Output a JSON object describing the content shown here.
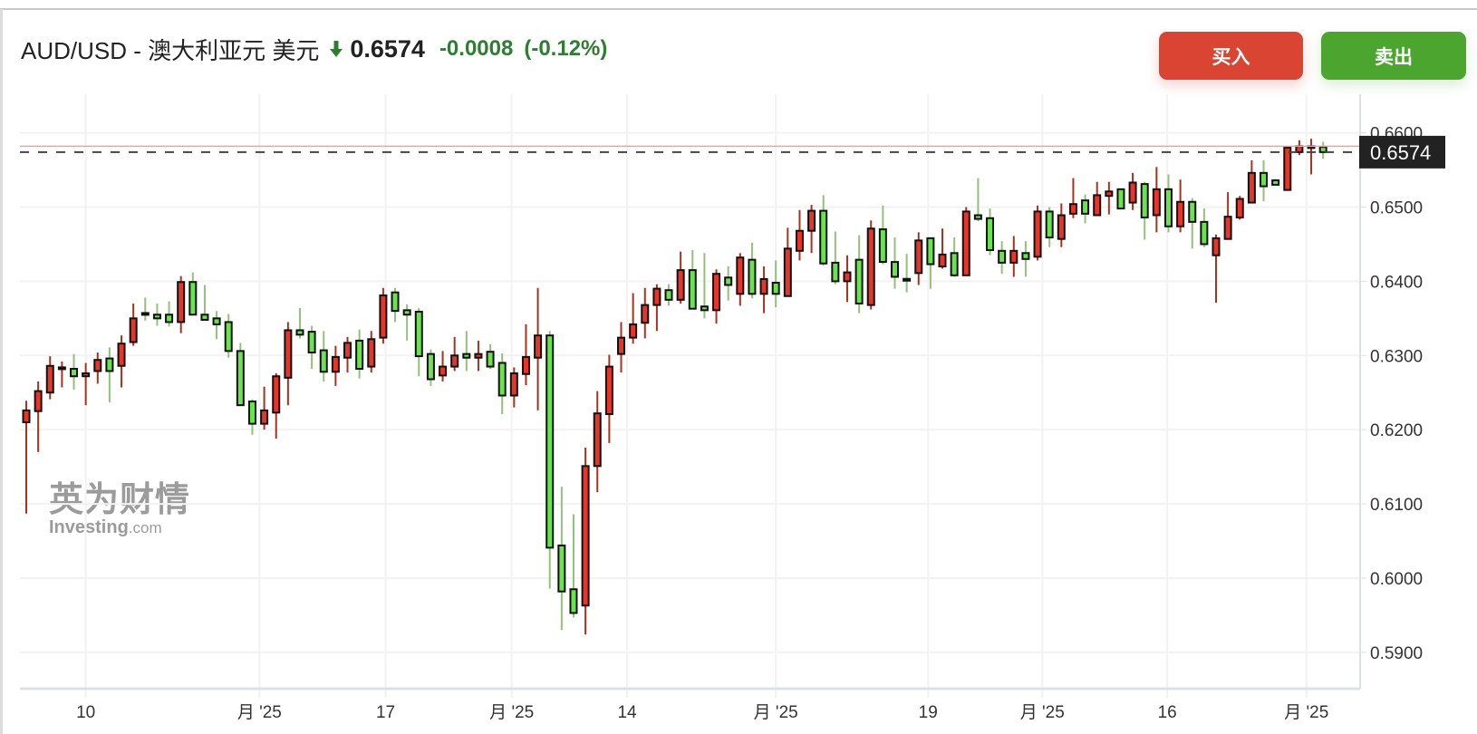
{
  "header": {
    "title": "AUD/USD - 澳大利亚元 美元",
    "direction_icon": "arrow-down-icon",
    "last_price": "0.6574",
    "change": "-0.0008",
    "change_pct": "(-0.12%)",
    "change_color": "#2f7d32"
  },
  "buttons": {
    "buy": "买入",
    "sell": "卖出",
    "buy_color": "#d94433",
    "sell_color": "#4ca52f"
  },
  "watermark": {
    "cn": "英为财情",
    "en": "Investing",
    "suffix": ".com"
  },
  "chart_data": {
    "type": "candlestick",
    "up_color": "#e8352a",
    "down_color": "#6be24f",
    "ylim": [
      0.5851,
      0.6652
    ],
    "grid": true,
    "y_ticks": [
      "0.6600",
      "0.6500",
      "0.6400",
      "0.6300",
      "0.6200",
      "0.6100",
      "0.6000",
      "0.5900"
    ],
    "x_ticks": [
      {
        "label": "10",
        "at": 5
      },
      {
        "label": "月 '25",
        "at": 19.6
      },
      {
        "label": "17",
        "at": 30.2
      },
      {
        "label": "月 '25",
        "at": 40.8
      },
      {
        "label": "14",
        "at": 50.5
      },
      {
        "label": "月 '25",
        "at": 63
      },
      {
        "label": "19",
        "at": 75.8
      },
      {
        "label": "月 '25",
        "at": 85.4
      },
      {
        "label": "16",
        "at": 95.9
      },
      {
        "label": "月 '25",
        "at": 107.6
      }
    ],
    "last_price_label": "0.6574",
    "last_price": 0.6574,
    "high_line": 0.6582,
    "ohlc_fields": [
      "open",
      "high",
      "low",
      "close"
    ],
    "candles": [
      [
        0.621,
        0.6239,
        0.6087,
        0.6226
      ],
      [
        0.6225,
        0.6265,
        0.617,
        0.6252
      ],
      [
        0.625,
        0.6299,
        0.6241,
        0.6286
      ],
      [
        0.6283,
        0.6292,
        0.6257,
        0.6284
      ],
      [
        0.6282,
        0.6302,
        0.6254,
        0.6272
      ],
      [
        0.6272,
        0.629,
        0.6233,
        0.6276
      ],
      [
        0.6279,
        0.6304,
        0.6262,
        0.6294
      ],
      [
        0.6296,
        0.6311,
        0.6237,
        0.6279
      ],
      [
        0.6286,
        0.6327,
        0.6257,
        0.6316
      ],
      [
        0.6318,
        0.637,
        0.6313,
        0.635
      ],
      [
        0.6356,
        0.6378,
        0.6347,
        0.6356
      ],
      [
        0.6355,
        0.637,
        0.634,
        0.635
      ],
      [
        0.6355,
        0.6373,
        0.6339,
        0.6345
      ],
      [
        0.6345,
        0.6407,
        0.633,
        0.6399
      ],
      [
        0.6399,
        0.6412,
        0.6355,
        0.6355
      ],
      [
        0.6355,
        0.6395,
        0.6348,
        0.6348
      ],
      [
        0.635,
        0.636,
        0.6322,
        0.6342
      ],
      [
        0.6345,
        0.6356,
        0.6297,
        0.6306
      ],
      [
        0.6306,
        0.6317,
        0.6233,
        0.6233
      ],
      [
        0.6238,
        0.6241,
        0.6193,
        0.6208
      ],
      [
        0.6208,
        0.6258,
        0.62,
        0.6226
      ],
      [
        0.6223,
        0.6276,
        0.6188,
        0.6272
      ],
      [
        0.627,
        0.6345,
        0.6233,
        0.6334
      ],
      [
        0.6334,
        0.6364,
        0.6323,
        0.6328
      ],
      [
        0.6332,
        0.634,
        0.6282,
        0.6304
      ],
      [
        0.6307,
        0.6333,
        0.6265,
        0.6278
      ],
      [
        0.6278,
        0.6313,
        0.6259,
        0.6298
      ],
      [
        0.6297,
        0.6325,
        0.6277,
        0.6317
      ],
      [
        0.632,
        0.6335,
        0.6269,
        0.6282
      ],
      [
        0.6285,
        0.6333,
        0.6277,
        0.6322
      ],
      [
        0.6324,
        0.6391,
        0.6316,
        0.6381
      ],
      [
        0.6385,
        0.6391,
        0.6345,
        0.636
      ],
      [
        0.6361,
        0.6369,
        0.632,
        0.6355
      ],
      [
        0.6359,
        0.6364,
        0.6272,
        0.6299
      ],
      [
        0.6302,
        0.6308,
        0.6259,
        0.6268
      ],
      [
        0.6273,
        0.6306,
        0.6265,
        0.6285
      ],
      [
        0.6285,
        0.6325,
        0.6279,
        0.63
      ],
      [
        0.6302,
        0.6333,
        0.6279,
        0.6297
      ],
      [
        0.6297,
        0.632,
        0.6279,
        0.6302
      ],
      [
        0.6305,
        0.6315,
        0.6282,
        0.6285
      ],
      [
        0.629,
        0.6303,
        0.6221,
        0.6246
      ],
      [
        0.6246,
        0.6284,
        0.623,
        0.6276
      ],
      [
        0.6275,
        0.6342,
        0.626,
        0.6298
      ],
      [
        0.6297,
        0.6391,
        0.6226,
        0.6327
      ],
      [
        0.6327,
        0.6333,
        0.5986,
        0.6041
      ],
      [
        0.6044,
        0.6123,
        0.593,
        0.5982
      ],
      [
        0.5985,
        0.6086,
        0.5947,
        0.5953
      ],
      [
        0.5963,
        0.6176,
        0.5924,
        0.6151
      ],
      [
        0.6151,
        0.6252,
        0.6116,
        0.6222
      ],
      [
        0.6221,
        0.6301,
        0.6182,
        0.6285
      ],
      [
        0.6302,
        0.6345,
        0.6277,
        0.6324
      ],
      [
        0.6324,
        0.6384,
        0.6316,
        0.6342
      ],
      [
        0.6344,
        0.6391,
        0.6323,
        0.6368
      ],
      [
        0.6368,
        0.6396,
        0.6333,
        0.639
      ],
      [
        0.6388,
        0.6396,
        0.6367,
        0.6375
      ],
      [
        0.6375,
        0.644,
        0.637,
        0.6415
      ],
      [
        0.6415,
        0.6442,
        0.6363,
        0.6363
      ],
      [
        0.6366,
        0.6438,
        0.635,
        0.6361
      ],
      [
        0.6361,
        0.6416,
        0.6343,
        0.641
      ],
      [
        0.6405,
        0.642,
        0.6374,
        0.6395
      ],
      [
        0.6383,
        0.6438,
        0.6367,
        0.6432
      ],
      [
        0.6429,
        0.6452,
        0.6377,
        0.6383
      ],
      [
        0.6383,
        0.642,
        0.6357,
        0.6403
      ],
      [
        0.6398,
        0.6428,
        0.6365,
        0.6383
      ],
      [
        0.638,
        0.6472,
        0.638,
        0.6444
      ],
      [
        0.6441,
        0.6496,
        0.6428,
        0.6468
      ],
      [
        0.6468,
        0.6503,
        0.6438,
        0.6495
      ],
      [
        0.6495,
        0.6516,
        0.6421,
        0.6424
      ],
      [
        0.6425,
        0.6467,
        0.6396,
        0.64
      ],
      [
        0.64,
        0.6435,
        0.6372,
        0.6412
      ],
      [
        0.6429,
        0.6462,
        0.6357,
        0.637
      ],
      [
        0.6368,
        0.6482,
        0.6362,
        0.6471
      ],
      [
        0.647,
        0.6502,
        0.6423,
        0.6426
      ],
      [
        0.6426,
        0.6459,
        0.639,
        0.6406
      ],
      [
        0.6402,
        0.6437,
        0.6385,
        0.6402
      ],
      [
        0.6411,
        0.6466,
        0.6395,
        0.6455
      ],
      [
        0.6458,
        0.6458,
        0.639,
        0.6423
      ],
      [
        0.642,
        0.6471,
        0.6417,
        0.6436
      ],
      [
        0.6438,
        0.6459,
        0.6406,
        0.6408
      ],
      [
        0.6408,
        0.65,
        0.6408,
        0.6494
      ],
      [
        0.6489,
        0.6539,
        0.6481,
        0.6484
      ],
      [
        0.6485,
        0.6498,
        0.6435,
        0.6442
      ],
      [
        0.6441,
        0.6454,
        0.641,
        0.6425
      ],
      [
        0.6425,
        0.6461,
        0.6406,
        0.6441
      ],
      [
        0.6438,
        0.6454,
        0.6406,
        0.643
      ],
      [
        0.6433,
        0.6502,
        0.6428,
        0.6494
      ],
      [
        0.6494,
        0.65,
        0.6446,
        0.6459
      ],
      [
        0.6457,
        0.6505,
        0.6446,
        0.6489
      ],
      [
        0.6491,
        0.6539,
        0.6485,
        0.6504
      ],
      [
        0.6509,
        0.6517,
        0.6478,
        0.6491
      ],
      [
        0.6489,
        0.6534,
        0.6489,
        0.6516
      ],
      [
        0.6515,
        0.6534,
        0.649,
        0.6521
      ],
      [
        0.6524,
        0.6524,
        0.6497,
        0.6498
      ],
      [
        0.6506,
        0.6546,
        0.6496,
        0.6533
      ],
      [
        0.6531,
        0.6534,
        0.6456,
        0.6486
      ],
      [
        0.6489,
        0.6554,
        0.6466,
        0.6524
      ],
      [
        0.6524,
        0.6544,
        0.6466,
        0.6474
      ],
      [
        0.6474,
        0.6537,
        0.6466,
        0.6507
      ],
      [
        0.6507,
        0.6512,
        0.6444,
        0.648
      ],
      [
        0.648,
        0.6498,
        0.6446,
        0.645
      ],
      [
        0.6435,
        0.6463,
        0.6371,
        0.6458
      ],
      [
        0.6457,
        0.652,
        0.6457,
        0.6487
      ],
      [
        0.6486,
        0.6515,
        0.6483,
        0.6511
      ],
      [
        0.6506,
        0.6563,
        0.6506,
        0.6546
      ],
      [
        0.6546,
        0.6563,
        0.6508,
        0.6528
      ],
      [
        0.6536,
        0.6538,
        0.653,
        0.653
      ],
      [
        0.6523,
        0.6582,
        0.6523,
        0.658
      ],
      [
        0.6574,
        0.659,
        0.657,
        0.6582
      ],
      [
        0.6581,
        0.6592,
        0.6544,
        0.6582
      ],
      [
        0.6581,
        0.6588,
        0.6565,
        0.6574
      ]
    ]
  }
}
